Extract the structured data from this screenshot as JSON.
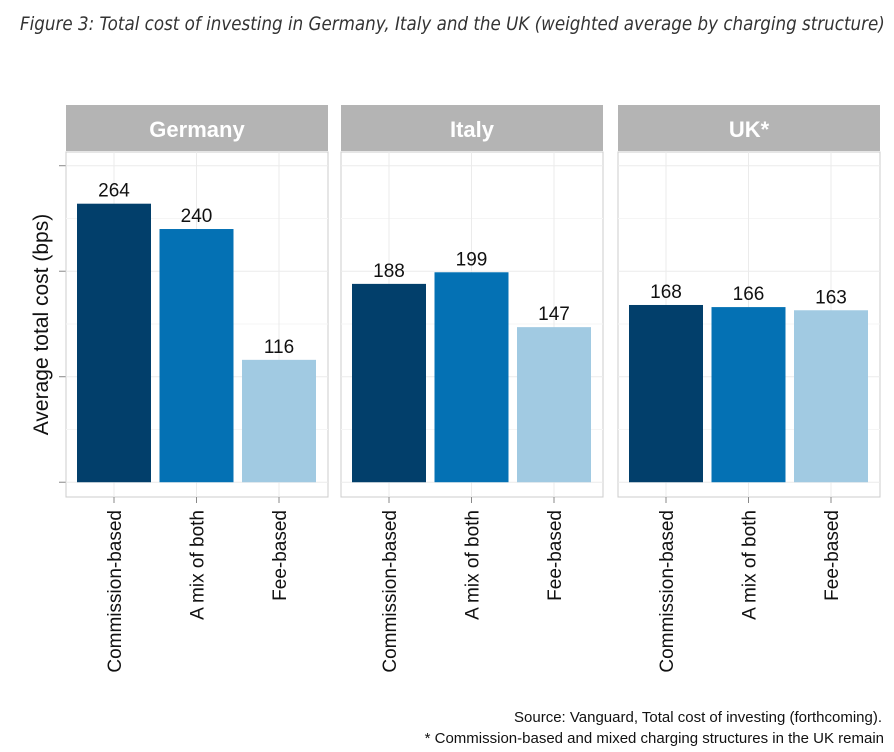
{
  "title": "Figure 3: Total cost of investing in Germany, Italy and the UK (weighted average by charging structure)",
  "source": "Source: Vanguard, Total cost of investing (forthcoming).",
  "footnote": "* Commission-based and mixed charging structures in the UK remain",
  "chart_data": {
    "type": "bar",
    "ylabel": "Average total cost (bps)",
    "ylim": [
      -14,
      313
    ],
    "yticks": [
      0,
      100,
      200,
      300
    ],
    "grid": true,
    "categories": [
      "Commission-based",
      "A mix of both",
      "Fee-based"
    ],
    "colors": [
      "#023f6b",
      "#0471b4",
      "#a1cae2"
    ],
    "panels": [
      {
        "name": "Germany",
        "values": [
          264,
          240,
          116
        ]
      },
      {
        "name": "Italy",
        "values": [
          188,
          199,
          147
        ]
      },
      {
        "name": "UK*",
        "values": [
          168,
          166,
          163
        ]
      }
    ]
  }
}
